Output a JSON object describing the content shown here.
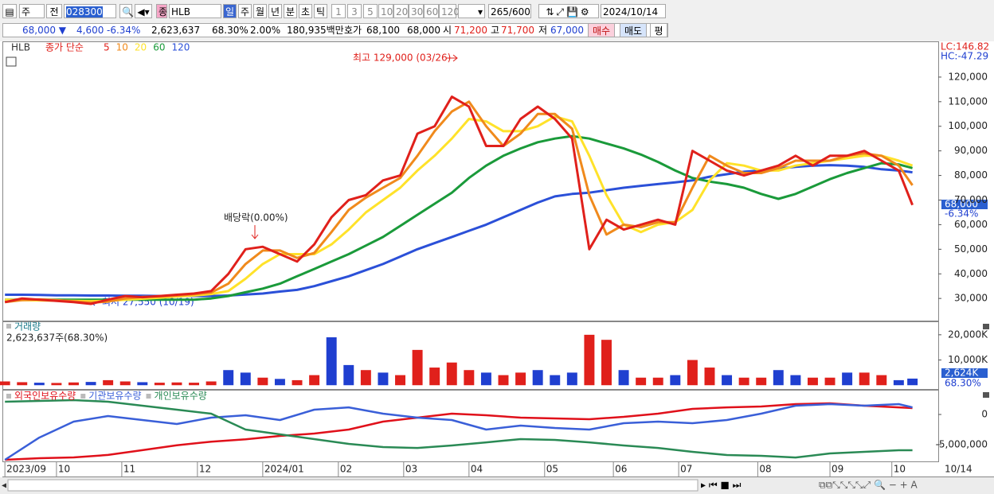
{
  "toolbar": {
    "row1": [
      "주",
      "전",
      "028300",
      "HLB",
      "일",
      "주",
      "월",
      "년",
      "분",
      "초",
      "틱",
      "1",
      "3",
      "5",
      "10",
      "20",
      "30",
      "60",
      "120",
      "265",
      "/600",
      "2024/10/14"
    ],
    "row2": [
      "68,000 ▼",
      "4,600",
      "-6.34%",
      "2,623,637",
      "68.30%",
      "2.00%",
      "180,935백만",
      "호가",
      "68,100",
      "68,000",
      "시",
      "71,200",
      "고",
      "71,700",
      "저",
      "67,000",
      "매수",
      "매도",
      "평"
    ]
  },
  "chart_data": [
    {
      "type": "line",
      "symbol": "HLB",
      "legend_title": "종가 단순",
      "lc_label": "LC:146.82",
      "hc_label": "HC:-47.29",
      "last_price_label": "68,000",
      "last_change_label": "-6.34%",
      "date_label": "10/14",
      "annotations": {
        "high": "최고 129,000 (03/26)",
        "low": "최저 27,550 (10/19)",
        "dividend": "배당락(0.00%)"
      },
      "xlim": [
        -0.5,
        271.5
      ],
      "xticks": [
        {
          "value": 0,
          "label": "2023/09"
        },
        {
          "value": 15,
          "label": "10"
        },
        {
          "value": 34,
          "label": "11"
        },
        {
          "value": 56,
          "label": "12"
        },
        {
          "value": 75,
          "label": "2024/01"
        },
        {
          "value": 97,
          "label": "02"
        },
        {
          "value": 116,
          "label": "03"
        },
        {
          "value": 135,
          "label": "04"
        },
        {
          "value": 157,
          "label": "05"
        },
        {
          "value": 177,
          "label": "06"
        },
        {
          "value": 196,
          "label": "07"
        },
        {
          "value": 219,
          "label": "08"
        },
        {
          "value": 240,
          "label": "09"
        },
        {
          "value": 258,
          "label": "10"
        }
      ],
      "ylim": [
        21000,
        134200
      ],
      "yticks": [
        {
          "value": 30000,
          "label": "30,000"
        },
        {
          "value": 40000,
          "label": "40,000"
        },
        {
          "value": 50000,
          "label": "50,000"
        },
        {
          "value": 60000,
          "label": "60,000"
        },
        {
          "value": 70000,
          "label": "70,000"
        },
        {
          "value": 80000,
          "label": "80,000"
        },
        {
          "value": 90000,
          "label": "90,000"
        },
        {
          "value": 100000,
          "label": "100,000"
        },
        {
          "value": 110000,
          "label": "110,000"
        },
        {
          "value": 120000,
          "label": "120,000"
        }
      ],
      "grid": false,
      "x": [
        0,
        5,
        10,
        15,
        20,
        25,
        30,
        35,
        40,
        45,
        50,
        55,
        60,
        65,
        70,
        75,
        80,
        85,
        90,
        95,
        100,
        105,
        110,
        115,
        120,
        125,
        130,
        135,
        140,
        145,
        150,
        155,
        160,
        165,
        170,
        175,
        180,
        185,
        190,
        195,
        200,
        205,
        210,
        215,
        220,
        225,
        230,
        235,
        240,
        245,
        250,
        255,
        260,
        264
      ],
      "series": [
        {
          "name": "120",
          "color": "#2b50d8",
          "values": [
            31500,
            31500,
            31400,
            31300,
            31300,
            31200,
            31200,
            31100,
            31100,
            31000,
            31000,
            31000,
            31000,
            31200,
            31600,
            32000,
            32800,
            33500,
            35000,
            37000,
            39000,
            41500,
            44000,
            47000,
            50000,
            52500,
            55000,
            57500,
            60000,
            63000,
            66000,
            69000,
            71500,
            72500,
            73000,
            74000,
            75000,
            75800,
            76500,
            77200,
            78000,
            79500,
            80500,
            81500,
            82000,
            82800,
            83500,
            84000,
            84200,
            84000,
            83500,
            82500,
            82000,
            81300
          ]
        },
        {
          "name": "60",
          "color": "#1a9a3a",
          "values": [
            29500,
            29500,
            29500,
            29500,
            29500,
            29500,
            29500,
            29500,
            29500,
            29500,
            29500,
            29500,
            30000,
            31000,
            32500,
            34000,
            36000,
            39000,
            42000,
            45000,
            48000,
            51500,
            55000,
            59500,
            64000,
            68500,
            73000,
            79000,
            84000,
            88000,
            91000,
            93500,
            95000,
            96000,
            95000,
            93000,
            91000,
            88500,
            85500,
            82000,
            79000,
            77500,
            76500,
            75000,
            72500,
            70500,
            72500,
            75500,
            78500,
            81000,
            83000,
            85000,
            84500,
            83000
          ]
        },
        {
          "name": "20",
          "color": "#ffe22a",
          "values": [
            29500,
            29300,
            29200,
            29100,
            29000,
            28900,
            29000,
            29500,
            29900,
            30300,
            30800,
            31200,
            31800,
            33000,
            38000,
            44000,
            48000,
            48000,
            48000,
            52000,
            58000,
            65000,
            70000,
            75000,
            82000,
            88000,
            95000,
            103000,
            102000,
            98000,
            98000,
            100000,
            104000,
            102000,
            88000,
            72000,
            60000,
            57000,
            60000,
            61000,
            66000,
            78000,
            85000,
            84000,
            82000,
            82000,
            84000,
            85000,
            86000,
            87000,
            88000,
            88000,
            86000,
            84000
          ]
        },
        {
          "name": "10",
          "color": "#f08a1c",
          "values": [
            28500,
            29300,
            29600,
            29300,
            28800,
            28300,
            28700,
            30000,
            30600,
            30800,
            31200,
            31700,
            32400,
            36000,
            44000,
            49500,
            49500,
            46500,
            48500,
            57000,
            66000,
            71000,
            75000,
            79000,
            88000,
            98000,
            106000,
            110000,
            100000,
            92000,
            97000,
            105000,
            105000,
            99000,
            72000,
            56000,
            60000,
            59000,
            61000,
            61000,
            75000,
            88000,
            84000,
            81000,
            81000,
            83000,
            86000,
            86000,
            86000,
            88000,
            89000,
            88000,
            84000,
            76000
          ]
        },
        {
          "name": "5",
          "color": "#e0201b",
          "values": [
            28500,
            30000,
            29500,
            29000,
            28500,
            27800,
            29500,
            31000,
            30500,
            31000,
            31500,
            32000,
            33000,
            40000,
            50000,
            51000,
            48000,
            45000,
            52000,
            63000,
            70000,
            72000,
            78000,
            80000,
            97000,
            100000,
            112000,
            108000,
            92000,
            92000,
            103000,
            108000,
            103000,
            95000,
            50000,
            62000,
            58000,
            60000,
            62000,
            60000,
            90000,
            86000,
            82000,
            80000,
            82000,
            84000,
            88000,
            84000,
            88000,
            88000,
            90000,
            86000,
            82000,
            68000
          ]
        }
      ]
    },
    {
      "type": "bar",
      "title": "거래량",
      "subtitle": "2,623,637주(68.30%)",
      "last_label": "2,624K",
      "last_pct_label": "68.30%",
      "xlim": [
        -0.5,
        271.5
      ],
      "ylim": [
        -1500,
        25000
      ],
      "yticks": [
        {
          "value": 10000,
          "label": "10,000K"
        },
        {
          "value": 20000,
          "label": "20,000K"
        }
      ],
      "up_color": "#e0201b",
      "down_color": "#1f3fd0",
      "x": [
        0,
        5,
        10,
        15,
        20,
        25,
        30,
        35,
        40,
        45,
        50,
        55,
        60,
        65,
        70,
        75,
        80,
        85,
        90,
        95,
        100,
        105,
        110,
        115,
        120,
        125,
        130,
        135,
        140,
        145,
        150,
        155,
        160,
        165,
        170,
        175,
        180,
        185,
        190,
        195,
        200,
        205,
        210,
        215,
        220,
        225,
        230,
        235,
        240,
        245,
        250,
        255,
        260,
        264
      ],
      "values": [
        1500,
        1200,
        1000,
        900,
        1100,
        1300,
        2000,
        1500,
        1200,
        1000,
        1100,
        1000,
        1500,
        6000,
        5000,
        3000,
        2500,
        2000,
        4000,
        19000,
        8000,
        6000,
        5000,
        4000,
        14000,
        7000,
        9000,
        6000,
        5000,
        4000,
        5000,
        6000,
        4000,
        5000,
        20000,
        18000,
        6000,
        3000,
        3000,
        4000,
        10000,
        7000,
        4000,
        3000,
        3000,
        6000,
        4000,
        3000,
        3000,
        5000,
        5000,
        4000,
        2000,
        2624
      ]
    },
    {
      "type": "line",
      "xlim": [
        -0.5,
        271.5
      ],
      "ylim": [
        -7760000,
        3950000
      ],
      "yticks": [
        0,
        {
          "value": -5000000,
          "label": "-5,000,000"
        }
      ],
      "x": [
        0,
        10,
        20,
        30,
        40,
        50,
        60,
        70,
        80,
        90,
        100,
        110,
        120,
        130,
        140,
        150,
        160,
        170,
        180,
        190,
        200,
        210,
        220,
        230,
        240,
        250,
        260,
        264
      ],
      "series": [
        {
          "name": "외국인보유수량",
          "color": "#e0101a",
          "values": [
            -7500000,
            -7240000,
            -7100000,
            -6700000,
            -5900000,
            -5100000,
            -4500000,
            -4100000,
            -3550000,
            -3160000,
            -2500000,
            -1180000,
            -530000,
            130000,
            -130000,
            -530000,
            -660000,
            -790000,
            -390000,
            130000,
            920000,
            1180000,
            1320000,
            1710000,
            1840000,
            1450000,
            1180000,
            1050000
          ]
        },
        {
          "name": "기관보유수량",
          "color": "#3a5fd8",
          "values": [
            -7500000,
            -3820000,
            -1180000,
            -260000,
            -920000,
            -1580000,
            -530000,
            -130000,
            -920000,
            790000,
            1180000,
            130000,
            -530000,
            -920000,
            -2500000,
            -1840000,
            -2240000,
            -2500000,
            -1450000,
            -1180000,
            -1450000,
            -920000,
            130000,
            1450000,
            1710000,
            1450000,
            1710000,
            1180000
          ]
        },
        {
          "name": "개인보유수량",
          "color": "#2a8a55",
          "values": [
            2110000,
            2240000,
            2370000,
            2110000,
            1450000,
            790000,
            130000,
            -2500000,
            -3290000,
            -4080000,
            -4870000,
            -5390000,
            -5530000,
            -5130000,
            -4610000,
            -4080000,
            -4210000,
            -4610000,
            -5130000,
            -5530000,
            -6180000,
            -6710000,
            -6840000,
            -7110000,
            -6450000,
            -6180000,
            -5920000,
            -5920000
          ]
        }
      ]
    }
  ]
}
